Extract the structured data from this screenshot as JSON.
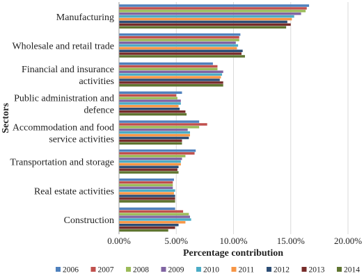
{
  "chart_data": {
    "type": "bar",
    "orientation": "horizontal",
    "title": "",
    "xlabel": "Percentage contribution",
    "ylabel": "Sectors",
    "xlim": [
      0,
      20
    ],
    "x_ticks": [
      "0.00%",
      "5.00%",
      "10.00%",
      "15.00%",
      "20.00%"
    ],
    "grid": true,
    "legend_position": "bottom",
    "categories": [
      [
        "Manufacturing"
      ],
      [
        "Wholesale and retail trade"
      ],
      [
        "Financial and insurance",
        "activities"
      ],
      [
        "Public administration and",
        "defence"
      ],
      [
        "Accommodation and food",
        "service activities"
      ],
      [
        "Transportation and storage"
      ],
      [
        "Real estate activities"
      ],
      [
        "Construction"
      ]
    ],
    "series": [
      {
        "name": "2006",
        "color": "#4f81bd",
        "values": [
          16.6,
          10.6,
          8.2,
          5.5,
          7.0,
          6.7,
          4.8,
          4.9
        ]
      },
      {
        "name": "2007",
        "color": "#c0504d",
        "values": [
          16.4,
          10.5,
          8.6,
          5.0,
          7.7,
          6.6,
          4.7,
          5.6
        ]
      },
      {
        "name": "2008",
        "color": "#9bbb59",
        "values": [
          16.3,
          10.5,
          8.6,
          5.1,
          7.0,
          5.8,
          4.7,
          6.1
        ]
      },
      {
        "name": "2009",
        "color": "#8064a2",
        "values": [
          15.9,
          10.2,
          9.1,
          5.4,
          6.0,
          5.5,
          4.7,
          6.2
        ]
      },
      {
        "name": "2010",
        "color": "#4bacc6",
        "values": [
          15.3,
          10.4,
          9.0,
          5.4,
          6.2,
          5.4,
          4.9,
          6.3
        ]
      },
      {
        "name": "2011",
        "color": "#f79646",
        "values": [
          15.1,
          10.3,
          8.9,
          5.2,
          6.2,
          5.4,
          4.8,
          5.8
        ]
      },
      {
        "name": "2012",
        "color": "#2c4d75",
        "values": [
          14.7,
          10.8,
          8.8,
          5.3,
          6.1,
          5.2,
          4.9,
          5.2
        ]
      },
      {
        "name": "2013",
        "color": "#772c2a",
        "values": [
          15.0,
          10.7,
          9.1,
          5.8,
          5.5,
          5.1,
          4.9,
          4.9
        ]
      },
      {
        "name": "2014",
        "color": "#5f7530",
        "values": [
          14.6,
          11.0,
          9.1,
          5.9,
          5.5,
          5.2,
          4.9,
          4.3
        ]
      }
    ]
  }
}
